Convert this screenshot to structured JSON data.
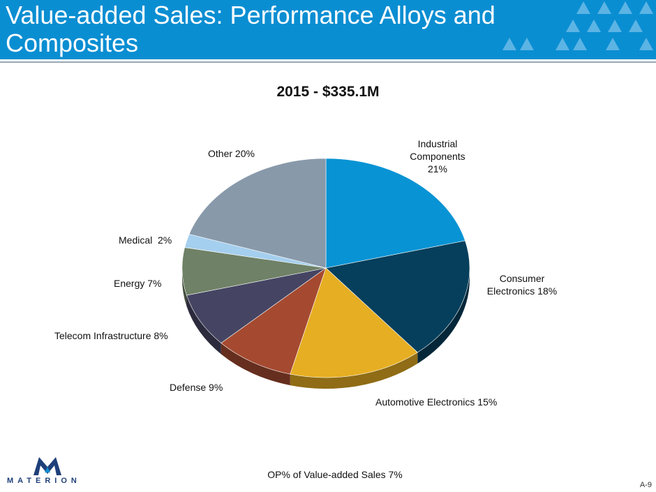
{
  "slide": {
    "title": "Value-added Sales:  Performance Alloys and Composites",
    "footnote": "OP% of Value-added Sales 7%",
    "page_number": "A-9",
    "logo_text": "MATERION"
  },
  "colors": {
    "header": "#0a8ed2",
    "industrial": "#0893d4",
    "consumer": "#053f5c",
    "automotive": "#e6ae22",
    "defense": "#a54a30",
    "telecom": "#454563",
    "energy": "#6f8166",
    "medical": "#a5cfee",
    "other": "#8899aa"
  },
  "chart_data": {
    "type": "pie",
    "title": "2015 - $335.1M",
    "start_angle_deg": 0,
    "direction": "clockwise",
    "slices": [
      {
        "label": "Industrial Components 21%",
        "value": 21,
        "color": "#0893d4"
      },
      {
        "label": "Consumer Electronics 18%",
        "value": 18,
        "color": "#053f5c"
      },
      {
        "label": "Automotive Electronics 15%",
        "value": 15,
        "color": "#e6ae22"
      },
      {
        "label": "Defense 9%",
        "value": 9,
        "color": "#a54a30"
      },
      {
        "label": "Telecom Infrastructure 8%",
        "value": 8,
        "color": "#454563"
      },
      {
        "label": "Energy 7%",
        "value": 7,
        "color": "#6f8166"
      },
      {
        "label": "Medical  2%",
        "value": 2,
        "color": "#a5cfee"
      },
      {
        "label": "Other 20%",
        "value": 20,
        "color": "#8899aa"
      }
    ],
    "label_lines": {
      "industrial": [
        "Industrial",
        "Components",
        "21%"
      ],
      "consumer": [
        "Consumer",
        "Electronics 18%"
      ]
    }
  }
}
